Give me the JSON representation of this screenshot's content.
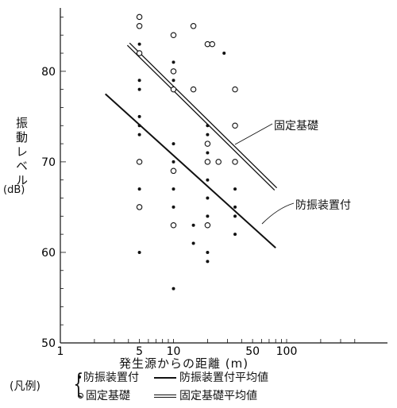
{
  "chart_data": {
    "type": "scatter",
    "x_scale": "log",
    "ylabel": "振動レベル",
    "ylabel_unit": "(dB)",
    "xlabel": "発生源からの距離 (m)",
    "xlim": [
      1,
      100
    ],
    "ylim": [
      50,
      87
    ],
    "x_ticks": [
      "1",
      "5",
      "10",
      "50",
      "100"
    ],
    "y_ticks": [
      "50",
      "60",
      "70",
      "80"
    ],
    "grid": false,
    "series": [
      {
        "name": "防振装置付",
        "marker": "dot",
        "points": [
          [
            5,
            83
          ],
          [
            5,
            79
          ],
          [
            5,
            78
          ],
          [
            5,
            75
          ],
          [
            5,
            74
          ],
          [
            5,
            73
          ],
          [
            5,
            67
          ],
          [
            5,
            60
          ],
          [
            10,
            81
          ],
          [
            10,
            79
          ],
          [
            10,
            72
          ],
          [
            10,
            70
          ],
          [
            10,
            69
          ],
          [
            10,
            67
          ],
          [
            10,
            65
          ],
          [
            10,
            56
          ],
          [
            15,
            63
          ],
          [
            15,
            61
          ],
          [
            20,
            74
          ],
          [
            20,
            73
          ],
          [
            20,
            71
          ],
          [
            20,
            70
          ],
          [
            20,
            68
          ],
          [
            20,
            66
          ],
          [
            20,
            64
          ],
          [
            20,
            60
          ],
          [
            20,
            59
          ],
          [
            35,
            70
          ],
          [
            35,
            67
          ],
          [
            35,
            65
          ],
          [
            35,
            64
          ],
          [
            35,
            62
          ],
          [
            28,
            82
          ]
        ]
      },
      {
        "name": "固定基礎",
        "marker": "circle",
        "points": [
          [
            5,
            86
          ],
          [
            5,
            85
          ],
          [
            5,
            82
          ],
          [
            5,
            70
          ],
          [
            5,
            65
          ],
          [
            10,
            84
          ],
          [
            10,
            80
          ],
          [
            10,
            78
          ],
          [
            10,
            69
          ],
          [
            10,
            63
          ],
          [
            15,
            85
          ],
          [
            15,
            78
          ],
          [
            20,
            83
          ],
          [
            22,
            83
          ],
          [
            20,
            72
          ],
          [
            20,
            70
          ],
          [
            20,
            63
          ],
          [
            25,
            70
          ],
          [
            35,
            78
          ],
          [
            35,
            74
          ],
          [
            35,
            70
          ]
        ]
      }
    ],
    "fit_lines": [
      {
        "name": "防振装置付平均値",
        "style": "single",
        "points": [
          [
            2.5,
            77.5
          ],
          [
            80,
            60.5
          ]
        ]
      },
      {
        "name": "固定基礎平均値",
        "style": "double",
        "points": [
          [
            4,
            83
          ],
          [
            80,
            67
          ]
        ]
      }
    ],
    "annotations": [
      {
        "text": "固定基礎",
        "line": "固定基礎平均値"
      },
      {
        "text": "防振装置付",
        "line": "防振装置付平均値"
      }
    ]
  },
  "legend": {
    "title": "(凡例)",
    "items": [
      {
        "mark": "dot",
        "text": "防振装置付"
      },
      {
        "mark": "circle",
        "text": "固定基礎"
      },
      {
        "mark": "line-single",
        "text": "防振装置付平均値"
      },
      {
        "mark": "line-double",
        "text": "固定基礎平均値"
      }
    ]
  }
}
